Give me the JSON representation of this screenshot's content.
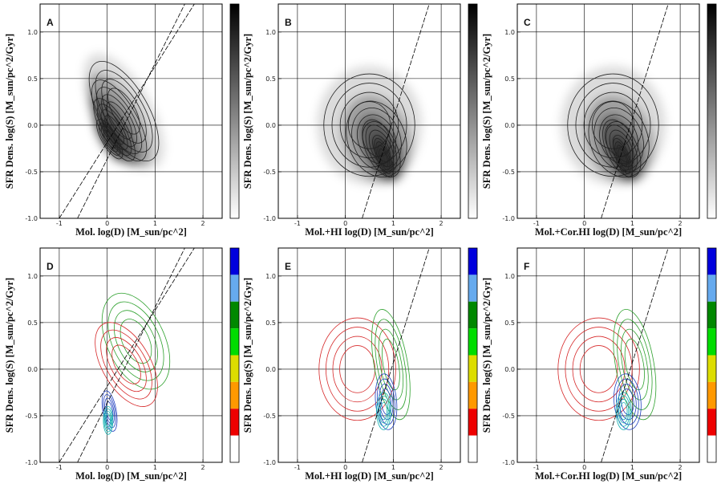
{
  "chart_data": [
    {
      "id": "A",
      "type": "heatmap",
      "label": "A",
      "xlabel": "Mol. log(D) [M_sun/pc^2]",
      "ylabel": "SFR Dens. log(S) [M_sun/pc^2/Gyr]",
      "xlim": [
        -1.4,
        2.4
      ],
      "ylim": [
        -1.0,
        1.3
      ],
      "xticks": [
        -1,
        0,
        1,
        2
      ],
      "yticks": [
        -1.0,
        -0.5,
        0.0,
        0.5,
        1.0
      ],
      "ytick_labels": [
        "-1.0",
        "-0.5",
        "0.0",
        "0.5",
        "1.0"
      ],
      "grid": true,
      "lines": [
        [
          [
            -1.0,
            -1.0
          ],
          [
            1.82,
            1.3
          ]
        ],
        [
          [
            -0.62,
            -1.0
          ],
          [
            1.62,
            1.3
          ]
        ]
      ],
      "contour_style": "gray",
      "contours": [
        {
          "cx": 0.35,
          "cy": 0.15,
          "rx": 0.5,
          "ry": 0.6,
          "angle": -30
        },
        {
          "cx": 0.25,
          "cy": 0.05,
          "rx": 0.37,
          "ry": 0.49,
          "angle": -30
        },
        {
          "cx": 0.15,
          "cy": -0.05,
          "rx": 0.26,
          "ry": 0.38,
          "angle": -30
        },
        {
          "cx": 0.05,
          "cy": -0.15,
          "rx": 0.16,
          "ry": 0.24,
          "angle": -30
        }
      ],
      "colorbar": {
        "type": "gray"
      }
    },
    {
      "id": "B",
      "type": "heatmap",
      "label": "B",
      "xlabel": "Mol.+HI log(D) [M_sun/pc^2]",
      "ylabel": "SFR Dens. log(S) [M_sun/pc^2/Gyr]",
      "xlim": [
        -1.4,
        2.4
      ],
      "ylim": [
        -1.0,
        1.3
      ],
      "xticks": [
        -1,
        0,
        1,
        2
      ],
      "yticks": [
        -1.0,
        -0.5,
        0.0,
        0.5,
        1.0
      ],
      "ytick_labels": [
        "-1.0",
        "-0.5",
        "0.0",
        "0.5",
        "1.0"
      ],
      "grid": true,
      "lines": [
        [
          [
            0.35,
            -1.0
          ],
          [
            1.75,
            1.3
          ]
        ]
      ],
      "contour_style": "gray",
      "contours": [
        {
          "cx": 0.5,
          "cy": 0.0,
          "rx": 0.95,
          "ry": 0.55,
          "angle": 0
        },
        {
          "cx": 0.65,
          "cy": -0.15,
          "rx": 0.6,
          "ry": 0.42,
          "angle": -20
        },
        {
          "cx": 0.75,
          "cy": -0.25,
          "rx": 0.32,
          "ry": 0.33,
          "angle": -25
        },
        {
          "cx": 0.8,
          "cy": -0.35,
          "rx": 0.14,
          "ry": 0.22,
          "angle": -20
        }
      ],
      "colorbar": {
        "type": "gray"
      }
    },
    {
      "id": "C",
      "type": "heatmap",
      "label": "C",
      "xlabel": "Mol.+Cor.HI log(D) [M_sun/pc^2]",
      "ylabel": "SFR Dens. log(S) [M_sun/pc^2/Gyr]",
      "xlim": [
        -1.4,
        2.4
      ],
      "ylim": [
        -1.0,
        1.3
      ],
      "xticks": [
        -1,
        0,
        1,
        2
      ],
      "yticks": [
        -1.0,
        -0.5,
        0.0,
        0.5,
        1.0
      ],
      "ytick_labels": [
        "-1.0",
        "-0.5",
        "0.0",
        "0.5",
        "1.0"
      ],
      "grid": true,
      "lines": [
        [
          [
            0.35,
            -1.0
          ],
          [
            1.75,
            1.3
          ]
        ]
      ],
      "contour_style": "gray",
      "contours": [
        {
          "cx": 0.6,
          "cy": 0.0,
          "rx": 0.95,
          "ry": 0.55,
          "angle": 0
        },
        {
          "cx": 0.72,
          "cy": -0.15,
          "rx": 0.6,
          "ry": 0.42,
          "angle": -20
        },
        {
          "cx": 0.78,
          "cy": -0.25,
          "rx": 0.32,
          "ry": 0.33,
          "angle": -25
        },
        {
          "cx": 0.8,
          "cy": -0.35,
          "rx": 0.14,
          "ry": 0.22,
          "angle": -20
        }
      ],
      "colorbar": {
        "type": "gray"
      }
    },
    {
      "id": "D",
      "type": "line",
      "label": "D",
      "xlabel": "Mol. log(D) [M_sun/pc^2]",
      "ylabel": "SFR Dens. log(S) [M_sun/pc^2/Gyr]",
      "xlim": [
        -1.4,
        2.4
      ],
      "ylim": [
        -1.0,
        1.3
      ],
      "xticks": [
        -1,
        0,
        1,
        2
      ],
      "yticks": [
        -1.0,
        -0.5,
        0.0,
        0.5,
        1.0
      ],
      "ytick_labels": [
        "-1.0",
        "-0.5",
        "0.0",
        "0.5",
        "1.0"
      ],
      "grid": true,
      "lines": [
        [
          [
            -1.0,
            -1.0
          ],
          [
            1.82,
            1.3
          ]
        ],
        [
          [
            -0.62,
            -1.0
          ],
          [
            1.62,
            1.3
          ]
        ]
      ],
      "contour_style": "color",
      "contours": [
        {
          "color": "#2ca02c",
          "cx": 0.6,
          "cy": 0.3,
          "rx": 0.6,
          "ry": 0.55,
          "angle": -25
        },
        {
          "color": "#d62728",
          "cx": 0.4,
          "cy": 0.05,
          "rx": 0.5,
          "ry": 0.5,
          "angle": -30
        },
        {
          "color": "#1f3fbf",
          "cx": 0.05,
          "cy": -0.45,
          "rx": 0.14,
          "ry": 0.22,
          "angle": -10
        },
        {
          "color": "#13b0b0",
          "cx": 0.02,
          "cy": -0.55,
          "rx": 0.1,
          "ry": 0.15,
          "angle": 0
        }
      ],
      "colorbar": {
        "type": "discrete",
        "colors": [
          "#0000dd",
          "#66aaee",
          "#008800",
          "#00dd00",
          "#dddd00",
          "#ff9900",
          "#ee0000",
          "#ffffff"
        ]
      }
    },
    {
      "id": "E",
      "type": "line",
      "label": "E",
      "xlabel": "Mol.+HI log(D) [M_sun/pc^2]",
      "ylabel": "SFR Dens. log(S) [M_sun/pc^2/Gyr]",
      "xlim": [
        -1.4,
        2.4
      ],
      "ylim": [
        -1.0,
        1.3
      ],
      "xticks": [
        -1,
        0,
        1,
        2
      ],
      "yticks": [
        -1.0,
        -0.5,
        0.0,
        0.5,
        1.0
      ],
      "ytick_labels": [
        "-1.0",
        "-0.5",
        "0.0",
        "0.5",
        "1.0"
      ],
      "grid": true,
      "lines": [
        [
          [
            0.35,
            -1.0
          ],
          [
            1.75,
            1.3
          ]
        ]
      ],
      "contour_style": "color",
      "contours": [
        {
          "color": "#d62728",
          "cx": 0.25,
          "cy": 0.0,
          "rx": 0.8,
          "ry": 0.55,
          "angle": 0
        },
        {
          "color": "#2ca02c",
          "cx": 0.95,
          "cy": 0.05,
          "rx": 0.35,
          "ry": 0.6,
          "angle": -10
        },
        {
          "color": "#1f3fbf",
          "cx": 0.85,
          "cy": -0.35,
          "rx": 0.22,
          "ry": 0.3,
          "angle": -5
        },
        {
          "color": "#13b0b0",
          "cx": 0.8,
          "cy": -0.45,
          "rx": 0.15,
          "ry": 0.2,
          "angle": 0
        }
      ],
      "colorbar": {
        "type": "discrete",
        "colors": [
          "#0000dd",
          "#66aaee",
          "#008800",
          "#00dd00",
          "#dddd00",
          "#ff9900",
          "#ee0000",
          "#ffffff"
        ]
      }
    },
    {
      "id": "F",
      "type": "line",
      "label": "F",
      "xlabel": "Mol.+Cor.HI log(D) [M_sun/pc^2]",
      "ylabel": "SFR Dens. log(S) [M_sun/pc^2/Gyr]",
      "xlim": [
        -1.4,
        2.4
      ],
      "ylim": [
        -1.0,
        1.3
      ],
      "xticks": [
        -1,
        0,
        1,
        2
      ],
      "yticks": [
        -1.0,
        -0.5,
        0.0,
        0.5,
        1.0
      ],
      "ytick_labels": [
        "-1.0",
        "-0.5",
        "0.0",
        "0.5",
        "1.0"
      ],
      "grid": true,
      "lines": [
        [
          [
            0.35,
            -1.0
          ],
          [
            1.75,
            1.3
          ]
        ]
      ],
      "contour_style": "color",
      "contours": [
        {
          "color": "#d62728",
          "cx": 0.3,
          "cy": 0.0,
          "rx": 0.85,
          "ry": 0.55,
          "angle": 0
        },
        {
          "color": "#2ca02c",
          "cx": 1.05,
          "cy": 0.05,
          "rx": 0.4,
          "ry": 0.6,
          "angle": -10
        },
        {
          "color": "#1f3fbf",
          "cx": 0.9,
          "cy": -0.35,
          "rx": 0.28,
          "ry": 0.3,
          "angle": -5
        },
        {
          "color": "#13b0b0",
          "cx": 0.82,
          "cy": -0.45,
          "rx": 0.16,
          "ry": 0.2,
          "angle": 0
        }
      ],
      "colorbar": {
        "type": "discrete",
        "colors": [
          "#0000dd",
          "#66aaee",
          "#008800",
          "#00dd00",
          "#dddd00",
          "#ff9900",
          "#ee0000",
          "#ffffff"
        ]
      }
    }
  ]
}
